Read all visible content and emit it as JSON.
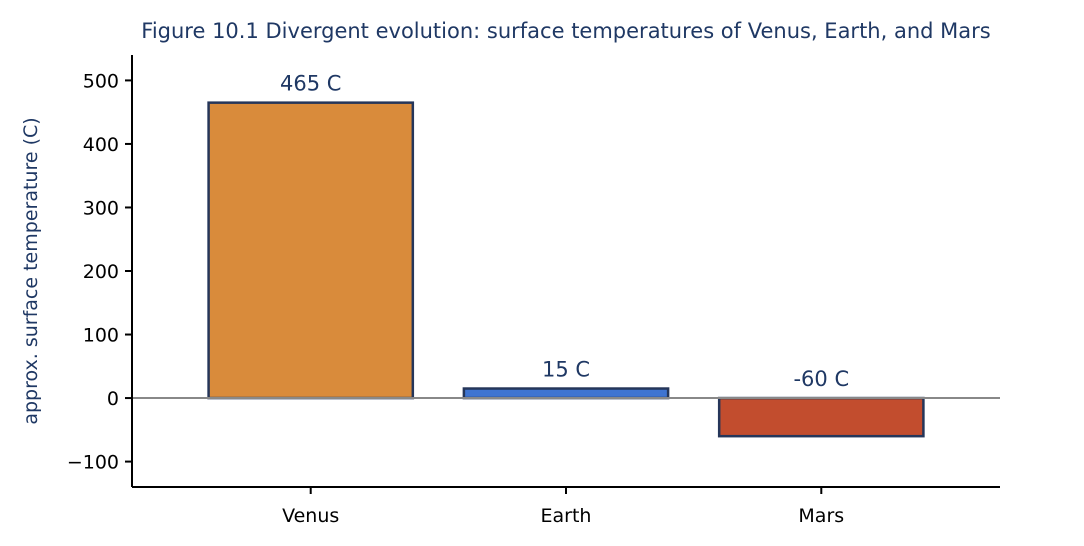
{
  "chart_data": {
    "type": "bar",
    "title": "Figure 10.1  Divergent evolution: surface temperatures of Venus, Earth, and Mars",
    "xlabel": "",
    "ylabel": "approx. surface temperature (C)",
    "categories": [
      "Venus",
      "Earth",
      "Mars"
    ],
    "values": [
      465,
      15,
      -60
    ],
    "data_labels": [
      "465 C",
      "15 C",
      "-60 C"
    ],
    "bar_colors": [
      "#d98b3b",
      "#3f74d1",
      "#c24d2e"
    ],
    "edge_color": "#25365a",
    "text_color": "#1f3864",
    "ylim": [
      -140,
      540
    ],
    "yticks": [
      -100,
      0,
      100,
      200,
      300,
      400,
      500
    ],
    "ytick_labels": [
      "−100",
      "0",
      "100",
      "200",
      "300",
      "400",
      "500"
    ],
    "zero_line": true,
    "zero_line_color": "#888888",
    "grid": false,
    "legend": "none"
  }
}
